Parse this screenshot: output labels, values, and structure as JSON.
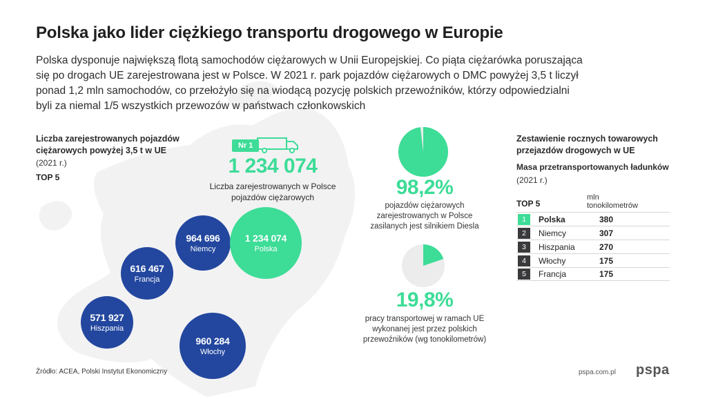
{
  "header": {
    "title": "Polska jako lider ciężkiego transportu drogowego w Europie",
    "intro": "Polska dysponuje największą flotą samochodów ciężarowych w Unii Europejskiej. Co piąta ciężarówka poruszająca się po drogach UE zarejestrowana jest w Polsce. W 2021 r. park pojazdów ciężarowych o DMC powyżej 3,5 t liczył ponad 1,2 mln samochodów, co przełożyło się na wiodącą pozycję polskich przewoźników, którzy odpowiedzialni byli za niemal 1/5 wszystkich przewozów w państwach członkowskich"
  },
  "left_panel": {
    "heading": "Liczba zarejestrowanych pojazdów ciężarowych powyżej 3,5 t w UE",
    "year": "(2021 r.)",
    "top_label": "TOP 5"
  },
  "highlight": {
    "badge": "Nr 1",
    "number": "1 234 074",
    "description": "Liczba zarejestrowanych w Polsce pojazdów ciężarowych",
    "truck_icon": "truck-icon"
  },
  "bubbles": [
    {
      "value": "1 234 074",
      "country": "Polska"
    },
    {
      "value": "964 696",
      "country": "Niemcy"
    },
    {
      "value": "616 467",
      "country": "Francja"
    },
    {
      "value": "571 927",
      "country": "Hiszpania"
    },
    {
      "value": "960 284",
      "country": "Włochy"
    }
  ],
  "stats": [
    {
      "percent": "98,2%",
      "fraction": 0.982,
      "description": "pojazdów ciężarowych zarejestrowanych w Polsce zasilanych jest silnikiem Diesla"
    },
    {
      "percent": "19,8%",
      "fraction": 0.198,
      "description": "pracy transportowej w ramach UE wykonanej jest przez polskich przewoźników (wg tonokilometrów)"
    }
  ],
  "right_panel": {
    "heading": "Zestawienie rocznych towarowych przejazdów drogowych w UE",
    "subheading": "Masa przetransportowanych ładunków",
    "year": "(2021 r.)",
    "top_label": "TOP 5",
    "unit": "mln tonokilometrów",
    "rows": [
      {
        "rank": "1",
        "country": "Polska",
        "value": "380"
      },
      {
        "rank": "2",
        "country": "Niemcy",
        "value": "307"
      },
      {
        "rank": "3",
        "country": "Hiszpania",
        "value": "270"
      },
      {
        "rank": "4",
        "country": "Włochy",
        "value": "175"
      },
      {
        "rank": "5",
        "country": "Francja",
        "value": "175"
      }
    ]
  },
  "footer": {
    "source": "Źródło: ACEA, Polski Instytut Ekonomiczny",
    "site": "pspa.com.pl",
    "logo": "pspa"
  },
  "colors": {
    "accent_green": "#3ddc97",
    "navy": "#23479f",
    "pie_grey": "#ececec",
    "map_grey": "#f2f2f3"
  }
}
